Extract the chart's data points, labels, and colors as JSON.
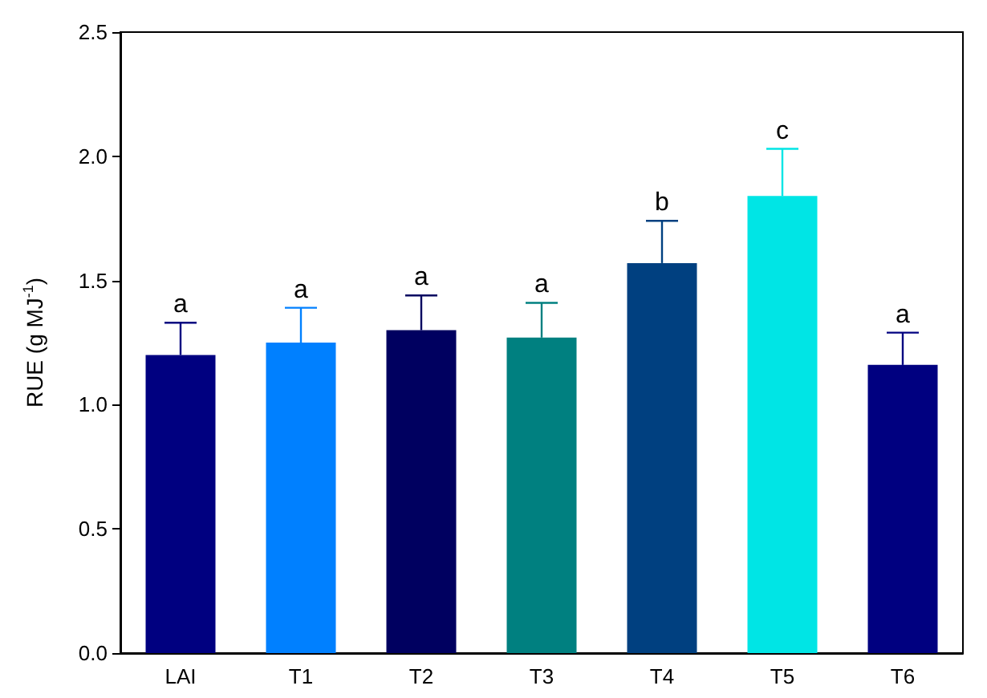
{
  "chart_data": {
    "type": "bar",
    "ylabel": "RUE (g MJ$^{-1}$)",
    "categories": [
      "LAI",
      "T1",
      "T2",
      "T3",
      "T4",
      "T5",
      "T6"
    ],
    "values": [
      1.2,
      1.25,
      1.3,
      1.27,
      1.57,
      1.84,
      1.16
    ],
    "colors": [
      "#000080",
      "#0080ff",
      "#000060",
      "#008080",
      "#004080",
      "#00e5e5",
      "#000080"
    ],
    "errors": [
      [
        1.2,
        1.33
      ],
      [
        1.25,
        1.39
      ],
      [
        1.3,
        1.44
      ],
      [
        1.27,
        1.41
      ],
      [
        1.57,
        1.74
      ],
      [
        1.84,
        2.03
      ],
      [
        1.16,
        1.29
      ]
    ],
    "ylim": [
      0,
      2.5
    ],
    "yticks": [
      {
        "value": 0,
        "label": "0.0"
      },
      0.5,
      {
        "value": 1,
        "label": "1.0"
      },
      1.5,
      {
        "value": 2,
        "label": "2.0"
      },
      2.5
    ],
    "annotations": [
      "a",
      "a",
      "a",
      "a",
      "b",
      "c",
      "a"
    ],
    "grid": false
  }
}
